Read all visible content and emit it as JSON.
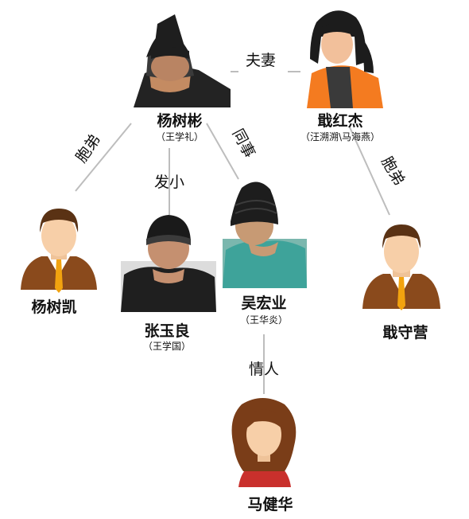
{
  "people": {
    "yang_shubin": {
      "name": "杨树彬",
      "alias": "（王学礼）"
    },
    "ji_hongjie": {
      "name": "戢红杰",
      "alias": "（汪溯溯\\马海燕）"
    },
    "yang_shukai": {
      "name": "杨树凯"
    },
    "zhang_yuliang": {
      "name": "张玉良",
      "alias": "（王学国）"
    },
    "wu_hongye": {
      "name": "吴宏业",
      "alias": "（王华炎）"
    },
    "ji_shouying": {
      "name": "戢守营"
    },
    "ma_jianhua": {
      "name": "马健华"
    }
  },
  "relations": {
    "spouse": "夫妻",
    "brother_left": "胞弟",
    "childhood_friend": "发小",
    "colleague": "同事",
    "brother_right": "胞弟",
    "lover": "情人"
  },
  "colors": {
    "line": "#bdbdbd",
    "suit": "#8a4a1c",
    "tie": "#f2a30f",
    "skin": "#f7cfa8",
    "hair_male": "#5a3214",
    "hair_female": "#7a3d18",
    "dress_red": "#c9302c",
    "orange_vest": "#f47b20"
  }
}
